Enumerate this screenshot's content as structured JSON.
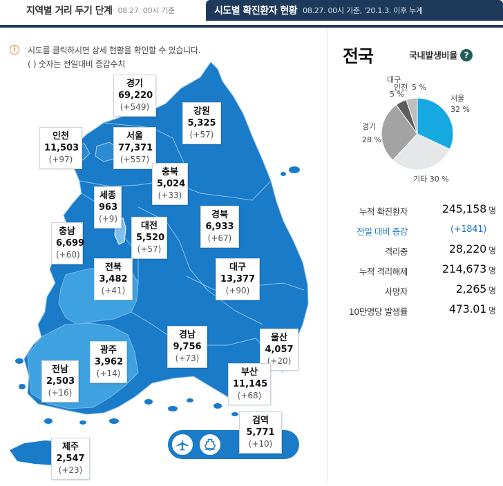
{
  "tabs": {
    "tab1_title": "지역별 거리 두기 단계",
    "tab1_sub": "08.27. 00시 기준",
    "tab2_title": "시도별 확진환자 현황",
    "tab2_sub": "08.27. 00시 기준, '20.1.3. 이후 누계"
  },
  "notice": {
    "line1": "시도를 클릭하시면 상세 현황을 확인할 수 있습니다.",
    "line2": "( ) 숫자는 전일대비 증감수치"
  },
  "regions": {
    "gyeonggi": {
      "name": "경기",
      "count": "69,220",
      "diff": "(+549)"
    },
    "gangwon": {
      "name": "강원",
      "count": "5,325",
      "diff": "(+57)"
    },
    "incheon": {
      "name": "인천",
      "count": "11,503",
      "diff": "(+97)"
    },
    "seoul": {
      "name": "서울",
      "count": "77,371",
      "diff": "(+557)"
    },
    "chungbuk": {
      "name": "충북",
      "count": "5,024",
      "diff": "(+33)"
    },
    "sejong": {
      "name": "세종",
      "count": "963",
      "diff": "(+9)"
    },
    "chungnam": {
      "name": "충남",
      "count": "6,699",
      "diff": "(+60)"
    },
    "daejeon": {
      "name": "대전",
      "count": "5,520",
      "diff": "(+57)"
    },
    "gyeongbuk": {
      "name": "경북",
      "count": "6,933",
      "diff": "(+67)"
    },
    "daegu": {
      "name": "대구",
      "count": "13,377",
      "diff": "(+90)"
    },
    "jeonbuk": {
      "name": "전북",
      "count": "3,482",
      "diff": "(+41)"
    },
    "gyeongnam": {
      "name": "경남",
      "count": "9,756",
      "diff": "(+73)"
    },
    "ulsan": {
      "name": "울산",
      "count": "4,057",
      "diff": "(+20)"
    },
    "gwangju": {
      "name": "광주",
      "count": "3,962",
      "diff": "(+14)"
    },
    "jeonnam": {
      "name": "전남",
      "count": "2,503",
      "diff": "(+16)"
    },
    "busan": {
      "name": "부산",
      "count": "11,145",
      "diff": "(+68)"
    },
    "jeju": {
      "name": "제주",
      "count": "2,547",
      "diff": "(+23)"
    },
    "quarantine": {
      "name": "검역",
      "count": "5,771",
      "diff": "(+10)"
    }
  },
  "icons": [
    "airplane-icon",
    "ship-icon"
  ],
  "panel": {
    "title": "전국",
    "ratio_label": "국내발생비율",
    "help": "?"
  },
  "chart_data": {
    "type": "pie",
    "title": "",
    "slices": [
      {
        "label": "서울",
        "value": 32,
        "text": "32 %",
        "color": "#16a9e1"
      },
      {
        "label": "기타",
        "value": 30,
        "text": "기타 30 %",
        "color": "#e6e7e9"
      },
      {
        "label": "경기",
        "value": 28,
        "text": "28 %",
        "color": "#a3a3a3"
      },
      {
        "label": "대구",
        "value": 5,
        "text": "5 %",
        "color": "#5d5d5d"
      },
      {
        "label": "인천",
        "value": 5,
        "text": "5 %",
        "color": "#bdbdbd"
      }
    ]
  },
  "stats": [
    {
      "label": "누적 확진환자",
      "value": "245,158",
      "unit": "명"
    },
    {
      "label": "전일 대비 증감",
      "value": "(+1841)",
      "unit": ""
    },
    {
      "label": "격리중",
      "value": "28,220",
      "unit": "명"
    },
    {
      "label": "누적 격리해제",
      "value": "214,673",
      "unit": "명"
    },
    {
      "label": "사망자",
      "value": "2,265",
      "unit": "명"
    },
    {
      "label": "10만명당 발생률",
      "value": "473.01",
      "unit": "명"
    }
  ],
  "colors": {
    "header_navy": "#1e3a5a",
    "map_blue": "#1a7bc8",
    "map_light_blue": "#3fa2e0",
    "accent_blue": "#1a73c8"
  }
}
